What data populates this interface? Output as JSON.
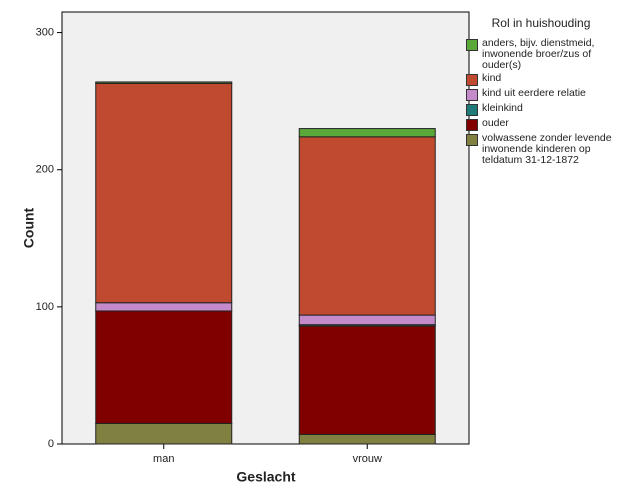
{
  "chart_data": {
    "type": "bar",
    "stacked": true,
    "x_label": "Geslacht",
    "y_label": "Count",
    "legend_title": "Rol in huishouding",
    "categories": [
      "man",
      "vrouw"
    ],
    "series": [
      {
        "name": "anders, bijv. dienstmeid, inwonende broer/zus of ouder(s)",
        "color": "#5aa83a",
        "values": [
          1,
          6
        ]
      },
      {
        "name": "kind",
        "color": "#c04a30",
        "values": [
          160,
          130
        ]
      },
      {
        "name": "kind uit eerdere relatie",
        "color": "#c58ac9",
        "values": [
          6,
          7
        ]
      },
      {
        "name": "kleinkind",
        "color": "#1f7a7a",
        "values": [
          0,
          1
        ]
      },
      {
        "name": "ouder",
        "color": "#800000",
        "values": [
          82,
          79
        ]
      },
      {
        "name": "volwassene zonder levende inwonende kinderen op teldatum 31-12-1872",
        "color": "#808040",
        "values": [
          15,
          7
        ]
      }
    ],
    "ylim": [
      0,
      315
    ],
    "yticks": [
      0,
      100,
      200,
      300
    ],
    "legend": "right"
  }
}
